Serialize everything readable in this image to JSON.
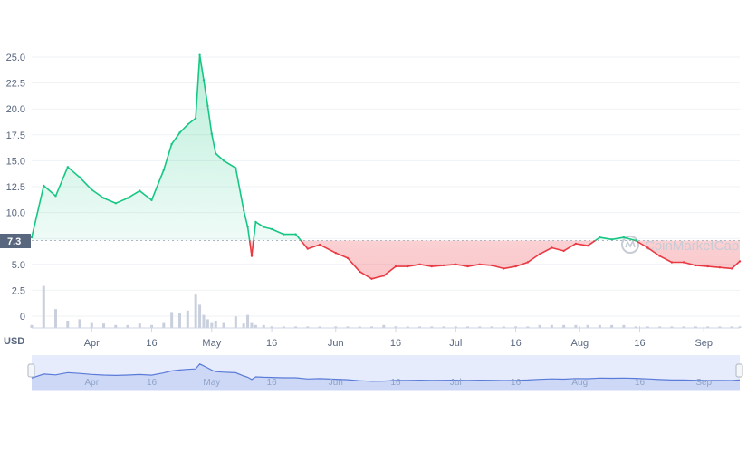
{
  "chart_data": {
    "type": "line",
    "currency": "USD",
    "ylim": [
      0,
      25
    ],
    "y_ticks": [
      "0",
      "2.5",
      "5.0",
      "7.5",
      "10.0",
      "12.5",
      "15.0",
      "17.5",
      "20.0",
      "22.5",
      "25.0"
    ],
    "x_ticks": [
      "Apr",
      "16",
      "May",
      "16",
      "Jun",
      "16",
      "Jul",
      "16",
      "Aug",
      "16",
      "Sep"
    ],
    "reference_value": 7.3,
    "reference_label": "7.3",
    "watermark": "CoinMarketCap",
    "grid": true,
    "colors": {
      "above": "#16c784",
      "below": "#ea3943",
      "volume": "#c9cfdc",
      "navigator": "#5b7bd8",
      "navigator_bg": "#e6ecfb",
      "reference_label_bg": "#58667e"
    },
    "series": [
      {
        "x": [
          "Mar 17",
          "Mar 20",
          "Mar 23",
          "Mar 26",
          "Mar 29",
          "Apr 1",
          "Apr 4",
          "Apr 7",
          "Apr 10",
          "Apr 13",
          "Apr 16",
          "Apr 19",
          "Apr 21",
          "Apr 23",
          "Apr 25",
          "Apr 27",
          "Apr 28",
          "Apr 29",
          "Apr 30",
          "May 1",
          "May 2",
          "May 4",
          "May 7",
          "May 9",
          "May 10",
          "May 11",
          "May 12",
          "May 14",
          "May 16",
          "May 19",
          "May 22",
          "May 25",
          "May 28",
          "Jun 1",
          "Jun 4",
          "Jun 7",
          "Jun 10",
          "Jun 13",
          "Jun 16",
          "Jun 19",
          "Jun 22",
          "Jun 25",
          "Jun 28",
          "Jul 1",
          "Jul 4",
          "Jul 7",
          "Jul 10",
          "Jul 13",
          "Jul 16",
          "Jul 19",
          "Jul 22",
          "Jul 25",
          "Jul 28",
          "Jul 31",
          "Aug 3",
          "Aug 6",
          "Aug 9",
          "Aug 12",
          "Aug 15",
          "Aug 18",
          "Aug 21",
          "Aug 24",
          "Aug 27",
          "Aug 30",
          "Sep 2",
          "Sep 5",
          "Sep 8",
          "Sep 10"
        ],
        "values": [
          7.6,
          12.6,
          11.6,
          14.4,
          13.4,
          12.2,
          11.4,
          10.9,
          11.4,
          12.1,
          11.2,
          14.1,
          16.6,
          17.7,
          18.5,
          19.1,
          25.2,
          22.8,
          20.3,
          17.6,
          15.7,
          15.0,
          14.3,
          10.2,
          8.6,
          5.8,
          9.1,
          8.6,
          8.4,
          7.9,
          7.9,
          6.5,
          6.9,
          6.1,
          5.6,
          4.3,
          3.6,
          3.9,
          4.8,
          4.8,
          5.0,
          4.8,
          4.9,
          5.0,
          4.8,
          5.0,
          4.9,
          4.6,
          4.8,
          5.2,
          6.0,
          6.6,
          6.3,
          7.0,
          6.8,
          7.6,
          7.4,
          7.6,
          7.3,
          6.6,
          5.8,
          5.2,
          5.2,
          4.9,
          4.8,
          4.7,
          4.6,
          5.3
        ]
      }
    ],
    "volume": [
      0.2,
      2.9,
      1.3,
      0.5,
      0.6,
      0.4,
      0.3,
      0.2,
      0.2,
      0.3,
      0.2,
      0.4,
      1.1,
      1.0,
      1.2,
      2.3,
      1.6,
      0.9,
      0.6,
      0.4,
      0.5,
      0.4,
      0.8,
      0.3,
      0.9,
      0.4,
      0.2,
      0.2,
      0.1,
      0.1,
      0.1,
      0.1,
      0.1,
      0.1,
      0.1,
      0.1,
      0.1,
      0.2,
      0.1,
      0.1,
      0.1,
      0.1,
      0.1,
      0.1,
      0.1,
      0.1,
      0.1,
      0.1,
      0.1,
      0.1,
      0.2,
      0.2,
      0.2,
      0.2,
      0.2,
      0.2,
      0.2,
      0.2,
      0.1,
      0.1,
      0.1,
      0.1,
      0.1,
      0.1,
      0.1,
      0.1,
      0.1,
      0.1
    ]
  }
}
